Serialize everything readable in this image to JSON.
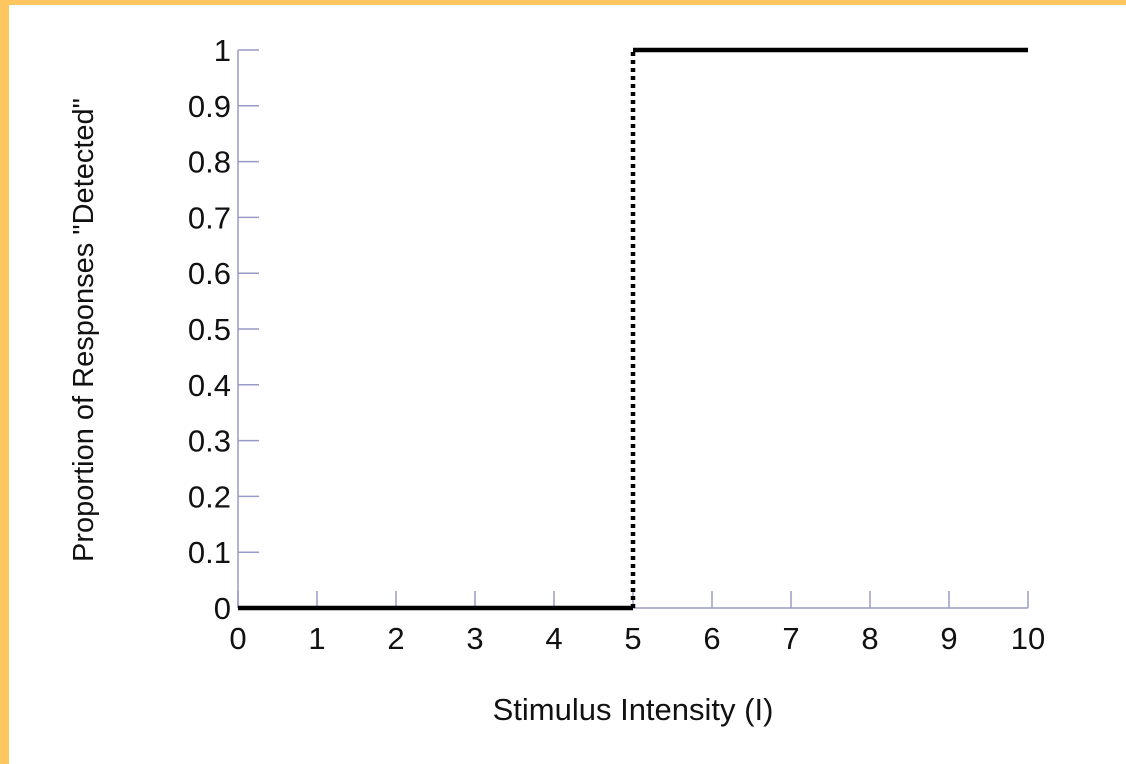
{
  "colors": {
    "frame_border": "#FDC65E",
    "background": "#FFFFFF",
    "axis": "#9A9AC8",
    "line": "#000000",
    "text": "#111111"
  },
  "chart_data": {
    "type": "line",
    "title": "",
    "xlabel": "Stimulus Intensity (I)",
    "ylabel": "Proportion of Responses \"Detected\"",
    "xlim": [
      0,
      10
    ],
    "ylim": [
      0,
      1
    ],
    "xticks": [
      "0",
      "1",
      "2",
      "3",
      "4",
      "5",
      "6",
      "7",
      "8",
      "9",
      "10"
    ],
    "yticks": [
      "0",
      "0.1",
      "0.2",
      "0.3",
      "0.4",
      "0.5",
      "0.6",
      "0.7",
      "0.8",
      "0.9",
      "1"
    ],
    "grid": false,
    "legend": "none",
    "series": [
      {
        "style": "solid",
        "x": [
          0,
          5
        ],
        "y": [
          0,
          0
        ]
      },
      {
        "style": "dotted",
        "x": [
          5,
          5
        ],
        "y": [
          0,
          1
        ]
      },
      {
        "style": "solid",
        "x": [
          5,
          10
        ],
        "y": [
          1,
          1
        ]
      }
    ]
  }
}
